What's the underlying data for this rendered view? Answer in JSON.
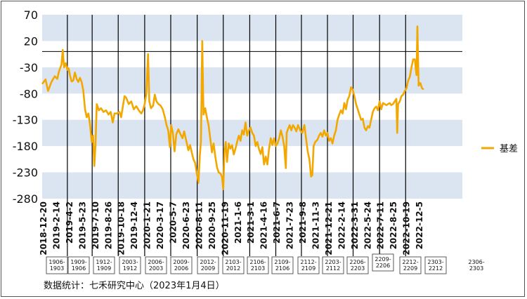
{
  "chart_data": {
    "type": "line",
    "title": "",
    "xlabel": "",
    "ylabel": "",
    "ylim": [
      -280,
      70
    ],
    "yticks": [
      70,
      20,
      -30,
      -80,
      -130,
      -180,
      -230,
      -280
    ],
    "band_color": "#dbe5f1",
    "line_color": "#f2a800",
    "legend_position": "right",
    "x_tick_labels": [
      "2018-12-20",
      "2019-2-14",
      "2019-4-2",
      "2019-5-23",
      "2019-7-10",
      "2019-8-26",
      "2019-10-18",
      "2019-12-4",
      "2020-1-21",
      "2020-3-17",
      "2020-5-7",
      "2020-6-23",
      "2020-8-11",
      "2020-9-25",
      "2020-11-19",
      "2021-1-6",
      "2021-3-1",
      "2021-4-16",
      "2021-6-7",
      "2021-7-23",
      "2021-9-8",
      "2021-11-3",
      "2021-12-21",
      "2022-2-14",
      "2022-3-31",
      "2022-5-24",
      "2022-7-11",
      "2022-8-25",
      "2022-10-19",
      "2022-12-5"
    ],
    "contract_boxes": [
      "1906-1903",
      "1909-1906",
      "1912-1909",
      "2003-1912",
      "2006-2003",
      "2009-2006",
      "2012-2009",
      "2103-2012",
      "2106-2103",
      "2109-2106",
      "2112-2109",
      "2203-2112",
      "2206-2203",
      "2209-2206",
      "2212-2209",
      "2303-2212",
      "2306-2303"
    ],
    "series": [
      {
        "name": "基差",
        "points": [
          [
            0.0,
            -62
          ],
          [
            0.008,
            -53
          ],
          [
            0.014,
            -75
          ],
          [
            0.022,
            -58
          ],
          [
            0.03,
            -47
          ],
          [
            0.036,
            -52
          ],
          [
            0.04,
            -38
          ],
          [
            0.046,
            -25
          ],
          [
            0.049,
            3
          ],
          [
            0.052,
            -30
          ],
          [
            0.056,
            -22
          ],
          [
            0.06,
            -35
          ],
          [
            0.063,
            -32
          ],
          [
            0.066,
            -45
          ],
          [
            0.07,
            -57
          ],
          [
            0.074,
            -55
          ],
          [
            0.078,
            -40
          ],
          [
            0.082,
            -52
          ],
          [
            0.086,
            -58
          ],
          [
            0.09,
            -50
          ],
          [
            0.094,
            -58
          ],
          [
            0.098,
            -75
          ],
          [
            0.102,
            -110
          ],
          [
            0.106,
            -125
          ],
          [
            0.11,
            -118
          ],
          [
            0.114,
            -140
          ],
          [
            0.118,
            -172
          ],
          [
            0.121,
            -160
          ],
          [
            0.124,
            -218
          ],
          [
            0.127,
            -178
          ],
          [
            0.13,
            -100
          ],
          [
            0.135,
            -112
          ],
          [
            0.14,
            -108
          ],
          [
            0.146,
            -115
          ],
          [
            0.152,
            -112
          ],
          [
            0.158,
            -120
          ],
          [
            0.163,
            -115
          ],
          [
            0.168,
            -135
          ],
          [
            0.172,
            -118
          ],
          [
            0.178,
            -118
          ],
          [
            0.184,
            -115
          ],
          [
            0.188,
            -125
          ],
          [
            0.192,
            -105
          ],
          [
            0.196,
            -85
          ],
          [
            0.2,
            -88
          ],
          [
            0.206,
            -100
          ],
          [
            0.212,
            -95
          ],
          [
            0.218,
            -110
          ],
          [
            0.224,
            -104
          ],
          [
            0.23,
            -112
          ],
          [
            0.236,
            -118
          ],
          [
            0.24,
            -112
          ],
          [
            0.244,
            -100
          ],
          [
            0.248,
            -80
          ],
          [
            0.252,
            -5
          ],
          [
            0.255,
            -95
          ],
          [
            0.259,
            -108
          ],
          [
            0.264,
            -103
          ],
          [
            0.268,
            -82
          ],
          [
            0.272,
            -95
          ],
          [
            0.277,
            -100
          ],
          [
            0.282,
            -103
          ],
          [
            0.287,
            -110
          ],
          [
            0.292,
            -125
          ],
          [
            0.296,
            -140
          ],
          [
            0.3,
            -150
          ],
          [
            0.304,
            -182
          ],
          [
            0.307,
            -140
          ],
          [
            0.311,
            -155
          ],
          [
            0.315,
            -190
          ],
          [
            0.319,
            -158
          ],
          [
            0.324,
            -148
          ],
          [
            0.329,
            -157
          ],
          [
            0.334,
            -165
          ],
          [
            0.338,
            -152
          ],
          [
            0.343,
            -170
          ],
          [
            0.348,
            -188
          ],
          [
            0.352,
            -178
          ],
          [
            0.356,
            -192
          ],
          [
            0.36,
            -205
          ],
          [
            0.364,
            -212
          ],
          [
            0.368,
            -232
          ],
          [
            0.372,
            -250
          ],
          [
            0.375,
            -200
          ],
          [
            0.378,
            -170
          ],
          [
            0.381,
            20
          ],
          [
            0.384,
            -120
          ],
          [
            0.388,
            -108
          ],
          [
            0.392,
            -125
          ],
          [
            0.396,
            -140
          ],
          [
            0.4,
            -165
          ],
          [
            0.404,
            -192
          ],
          [
            0.408,
            -175
          ],
          [
            0.412,
            -200
          ],
          [
            0.416,
            -220
          ],
          [
            0.42,
            -230
          ],
          [
            0.424,
            -232
          ],
          [
            0.428,
            -238
          ],
          [
            0.431,
            -262
          ],
          [
            0.434,
            -190
          ],
          [
            0.437,
            -172
          ],
          [
            0.44,
            -210
          ],
          [
            0.444,
            -175
          ],
          [
            0.448,
            -185
          ],
          [
            0.452,
            -178
          ],
          [
            0.456,
            -196
          ],
          [
            0.46,
            -185
          ],
          [
            0.464,
            -172
          ],
          [
            0.468,
            -160
          ],
          [
            0.472,
            -170
          ],
          [
            0.476,
            -150
          ],
          [
            0.48,
            -158
          ],
          [
            0.484,
            -135
          ],
          [
            0.488,
            -160
          ],
          [
            0.492,
            -150
          ],
          [
            0.496,
            -145
          ],
          [
            0.5,
            -155
          ],
          [
            0.504,
            -160
          ],
          [
            0.508,
            -180
          ],
          [
            0.512,
            -172
          ],
          [
            0.516,
            -186
          ],
          [
            0.52,
            -195
          ],
          [
            0.524,
            -182
          ],
          [
            0.528,
            -215
          ],
          [
            0.532,
            -200
          ],
          [
            0.536,
            -215
          ],
          [
            0.54,
            -185
          ],
          [
            0.544,
            -165
          ],
          [
            0.548,
            -178
          ],
          [
            0.552,
            -165
          ],
          [
            0.556,
            -180
          ],
          [
            0.56,
            -175
          ],
          [
            0.564,
            -165
          ],
          [
            0.568,
            -150
          ],
          [
            0.572,
            -162
          ],
          [
            0.576,
            -180
          ],
          [
            0.58,
            -222
          ],
          [
            0.582,
            -155
          ],
          [
            0.585,
            -148
          ],
          [
            0.589,
            -140
          ],
          [
            0.593,
            -150
          ],
          [
            0.597,
            -140
          ],
          [
            0.601,
            -145
          ],
          [
            0.605,
            -152
          ],
          [
            0.609,
            -140
          ],
          [
            0.614,
            -150
          ],
          [
            0.619,
            -155
          ],
          [
            0.624,
            -140
          ],
          [
            0.628,
            -165
          ],
          [
            0.632,
            -190
          ],
          [
            0.636,
            -205
          ],
          [
            0.64,
            -238
          ],
          [
            0.643,
            -235
          ],
          [
            0.646,
            -180
          ],
          [
            0.65,
            -172
          ],
          [
            0.655,
            -168
          ],
          [
            0.659,
            -160
          ],
          [
            0.663,
            -155
          ],
          [
            0.667,
            -162
          ],
          [
            0.671,
            -150
          ],
          [
            0.675,
            -160
          ],
          [
            0.679,
            -155
          ],
          [
            0.683,
            -170
          ],
          [
            0.687,
            -165
          ],
          [
            0.691,
            -175
          ],
          [
            0.695,
            -160
          ],
          [
            0.699,
            -150
          ],
          [
            0.703,
            -130
          ],
          [
            0.707,
            -120
          ],
          [
            0.711,
            -112
          ],
          [
            0.715,
            -118
          ],
          [
            0.719,
            -98
          ],
          [
            0.723,
            -110
          ],
          [
            0.727,
            -92
          ],
          [
            0.731,
            -85
          ],
          [
            0.735,
            -68
          ],
          [
            0.739,
            -72
          ],
          [
            0.743,
            -85
          ],
          [
            0.747,
            -100
          ],
          [
            0.751,
            -110
          ],
          [
            0.755,
            -120
          ],
          [
            0.759,
            -130
          ],
          [
            0.763,
            -128
          ],
          [
            0.767,
            -145
          ],
          [
            0.771,
            -150
          ],
          [
            0.775,
            -142
          ],
          [
            0.779,
            -145
          ],
          [
            0.783,
            -130
          ],
          [
            0.787,
            -115
          ],
          [
            0.791,
            -108
          ],
          [
            0.795,
            -105
          ],
          [
            0.799,
            -112
          ],
          [
            0.803,
            -95
          ],
          [
            0.807,
            -110
          ],
          [
            0.811,
            -98
          ],
          [
            0.815,
            -100
          ],
          [
            0.819,
            -102
          ],
          [
            0.823,
            -100
          ],
          [
            0.827,
            -98
          ],
          [
            0.831,
            -102
          ],
          [
            0.835,
            -100
          ],
          [
            0.839,
            -95
          ],
          [
            0.843,
            -90
          ],
          [
            0.845,
            -155
          ],
          [
            0.847,
            -100
          ],
          [
            0.851,
            -95
          ],
          [
            0.855,
            -85
          ],
          [
            0.859,
            -82
          ],
          [
            0.863,
            -75
          ],
          [
            0.867,
            -70
          ],
          [
            0.871,
            -55
          ],
          [
            0.875,
            -48
          ],
          [
            0.879,
            -30
          ],
          [
            0.883,
            -15
          ],
          [
            0.887,
            -15
          ],
          [
            0.889,
            -32
          ],
          [
            0.891,
            -45
          ],
          [
            0.893,
            48
          ],
          [
            0.896,
            -65
          ],
          [
            0.9,
            -60
          ],
          [
            0.904,
            -70
          ],
          [
            0.908,
            -72
          ]
        ]
      }
    ]
  },
  "legend": {
    "label": "基差"
  },
  "source_note": "数据统计：七禾研究中心（2023年1月4日）"
}
